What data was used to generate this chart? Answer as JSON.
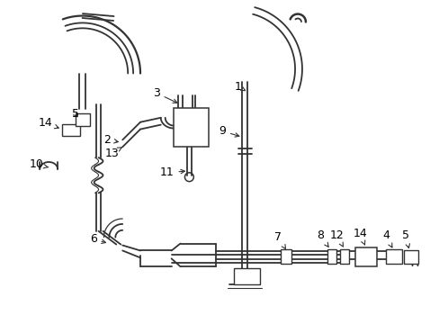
{
  "background_color": "#ffffff",
  "line_color": "#333333",
  "label_color": "#000000",
  "fig_width": 4.89,
  "fig_height": 3.6,
  "dpi": 100
}
